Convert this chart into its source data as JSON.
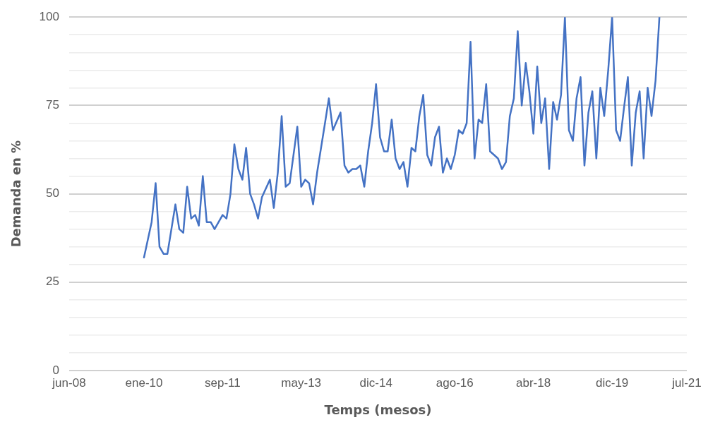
{
  "chart_data": {
    "type": "line",
    "xlabel": "Temps (mesos)",
    "ylabel": "Demanda en %",
    "x": [
      "2010-01",
      "2010-03",
      "2010-04",
      "2010-05",
      "2010-06",
      "2010-07",
      "2010-09",
      "2010-10",
      "2010-11",
      "2010-12",
      "2011-01",
      "2011-02",
      "2011-03",
      "2011-04",
      "2011-05",
      "2011-06",
      "2011-07",
      "2011-09",
      "2011-10",
      "2011-11",
      "2011-12",
      "2012-01",
      "2012-02",
      "2012-03",
      "2012-04",
      "2012-05",
      "2012-06",
      "2012-07",
      "2012-09",
      "2012-10",
      "2012-11",
      "2012-12",
      "2013-01",
      "2013-02",
      "2013-04",
      "2013-05",
      "2013-06",
      "2013-07",
      "2013-08",
      "2013-09",
      "2013-11",
      "2013-12",
      "2014-01",
      "2014-03",
      "2014-04",
      "2014-05",
      "2014-06",
      "2014-07",
      "2014-08",
      "2014-09",
      "2014-10",
      "2014-11",
      "2014-12",
      "2015-01",
      "2015-02",
      "2015-03",
      "2015-04",
      "2015-05",
      "2015-06",
      "2015-07",
      "2015-08",
      "2015-09",
      "2015-10",
      "2015-11",
      "2015-12",
      "2016-01",
      "2016-02",
      "2016-03",
      "2016-04",
      "2016-05",
      "2016-06",
      "2016-07",
      "2016-08",
      "2016-09",
      "2016-10",
      "2016-11",
      "2016-12",
      "2017-01",
      "2017-02",
      "2017-03",
      "2017-04",
      "2017-05",
      "2017-06",
      "2017-07",
      "2017-08",
      "2017-09",
      "2017-10",
      "2017-11",
      "2017-12",
      "2018-01",
      "2018-02",
      "2018-03",
      "2018-04",
      "2018-05",
      "2018-06",
      "2018-07",
      "2018-08",
      "2018-09",
      "2018-10",
      "2018-11",
      "2018-12",
      "2019-01",
      "2019-02",
      "2019-03",
      "2019-04",
      "2019-05",
      "2019-06",
      "2019-07",
      "2019-08",
      "2019-09",
      "2019-10",
      "2019-11",
      "2019-12",
      "2020-01",
      "2020-02",
      "2020-03",
      "2020-04",
      "2020-05",
      "2020-06",
      "2020-07",
      "2020-08",
      "2020-09",
      "2020-10",
      "2020-11",
      "2020-12"
    ],
    "series": [
      {
        "color": "#4472c4",
        "values": [
          32,
          42,
          53,
          35,
          33,
          33,
          47,
          40,
          39,
          52,
          43,
          44,
          41,
          55,
          42,
          42,
          40,
          44,
          43,
          50,
          64,
          57,
          54,
          63,
          50,
          47,
          43,
          49,
          54,
          46,
          56,
          72,
          52,
          53,
          69,
          52,
          54,
          53,
          47,
          56,
          70,
          77,
          68,
          73,
          58,
          56,
          57,
          57,
          58,
          52,
          62,
          70,
          81,
          66,
          62,
          62,
          71,
          60,
          57,
          59,
          52,
          63,
          62,
          72,
          78,
          61,
          58,
          66,
          69,
          56,
          60,
          57,
          61,
          68,
          67,
          70,
          93,
          60,
          71,
          70,
          81,
          62,
          61,
          60,
          57,
          59,
          72,
          77,
          96,
          75,
          87,
          79,
          67,
          86,
          70,
          77,
          57,
          76,
          71,
          78,
          100,
          68,
          65,
          77,
          83,
          58,
          73,
          79,
          60,
          80,
          72,
          85,
          100,
          68,
          65,
          74,
          83,
          58,
          73,
          79,
          60,
          80,
          72,
          82,
          100
        ]
      }
    ],
    "xlim": [
      "2008-06",
      "2021-07"
    ],
    "xticks": [
      {
        "value": "2008-06",
        "label": "jun-08"
      },
      {
        "value": "2010-01",
        "label": "ene-10"
      },
      {
        "value": "2011-09",
        "label": "sep-11"
      },
      {
        "value": "2013-05",
        "label": "may-13"
      },
      {
        "value": "2014-12",
        "label": "dic-14"
      },
      {
        "value": "2016-08",
        "label": "ago-16"
      },
      {
        "value": "2018-04",
        "label": "abr-18"
      },
      {
        "value": "2019-12",
        "label": "dic-19"
      },
      {
        "value": "2021-07",
        "label": "jul-21"
      }
    ],
    "ylim": [
      0,
      100
    ],
    "yticks": [
      0,
      {
        "value": 5,
        "label": null
      },
      {
        "value": 10,
        "label": null
      },
      {
        "value": 15,
        "label": null
      },
      {
        "value": 20,
        "label": null
      },
      25,
      {
        "value": 30,
        "label": null
      },
      {
        "value": 35,
        "label": null
      },
      {
        "value": 40,
        "label": null
      },
      {
        "value": 45,
        "label": null
      },
      50,
      {
        "value": 55,
        "label": null
      },
      {
        "value": 60,
        "label": null
      },
      {
        "value": 65,
        "label": null
      },
      {
        "value": 70,
        "label": null
      },
      75,
      {
        "value": 80,
        "label": null
      },
      {
        "value": 85,
        "label": null
      },
      {
        "value": 90,
        "label": null
      },
      {
        "value": 95,
        "label": null
      },
      100
    ],
    "grid": "y",
    "marker": "none",
    "line_style": "solid",
    "legend": false
  }
}
